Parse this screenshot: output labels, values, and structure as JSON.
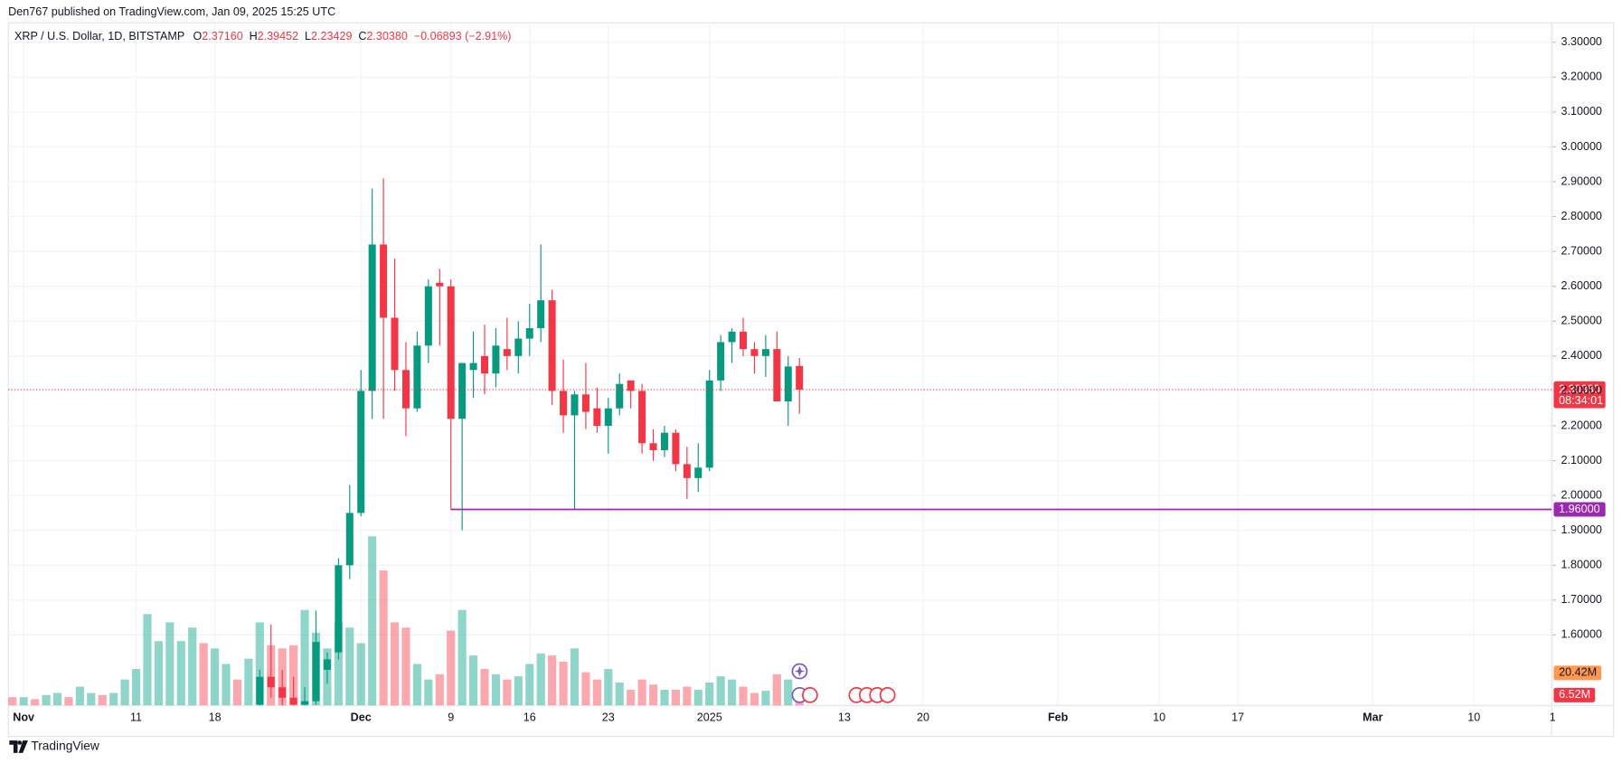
{
  "header": {
    "published": "Den767 published on TradingView.com, Jan 09, 2025 15:25 UTC"
  },
  "chart_data": {
    "type": "candlestick",
    "legend": {
      "symbol": "XRP / U.S. Dollar, 1D, BITSTAMP",
      "o": "O",
      "open": "2.37160",
      "h": "H",
      "high": "2.39452",
      "l": "L",
      "low": "2.23429",
      "c": "C",
      "close": "2.30380",
      "change": "−0.06893 (−2.91%)"
    },
    "x": [
      "2024-11-22",
      "2024-11-23",
      "2024-11-24",
      "2024-11-25",
      "2024-11-26",
      "2024-11-27",
      "2024-11-28",
      "2024-11-29",
      "2024-11-30",
      "2024-12-01",
      "2024-12-02",
      "2024-12-03",
      "2024-12-04",
      "2024-12-05",
      "2024-12-06",
      "2024-12-07",
      "2024-12-08",
      "2024-12-09",
      "2024-12-10",
      "2024-12-11",
      "2024-12-12",
      "2024-12-13",
      "2024-12-14",
      "2024-12-15",
      "2024-12-16",
      "2024-12-17",
      "2024-12-18",
      "2024-12-19",
      "2024-12-20",
      "2024-12-21",
      "2024-12-22",
      "2024-12-23",
      "2024-12-24",
      "2024-12-25",
      "2024-12-26",
      "2024-12-27",
      "2024-12-28",
      "2024-12-29",
      "2024-12-30",
      "2024-12-31",
      "2025-01-01",
      "2025-01-02",
      "2025-01-03",
      "2025-01-04",
      "2025-01-05",
      "2025-01-06",
      "2025-01-07",
      "2025-01-08",
      "2025-01-09"
    ],
    "open": [
      1.4,
      1.48,
      1.45,
      1.42,
      1.4,
      1.41,
      1.5,
      1.55,
      1.8,
      1.95,
      2.3,
      2.72,
      2.51,
      2.36,
      2.25,
      2.43,
      2.61,
      2.6,
      2.22,
      2.36,
      2.4,
      2.35,
      2.42,
      2.4,
      2.45,
      2.48,
      2.56,
      2.3,
      2.23,
      2.29,
      2.25,
      2.2,
      2.25,
      2.33,
      2.3,
      2.15,
      2.13,
      2.18,
      2.09,
      2.05,
      2.08,
      2.33,
      2.44,
      2.47,
      2.42,
      2.4,
      2.42,
      2.27,
      2.3716
    ],
    "high": [
      1.5,
      1.63,
      1.5,
      1.48,
      1.45,
      1.67,
      1.55,
      1.82,
      2.03,
      2.36,
      2.88,
      2.91,
      2.68,
      2.44,
      2.47,
      2.62,
      2.65,
      2.62,
      2.37,
      2.47,
      2.49,
      2.48,
      2.51,
      2.5,
      2.55,
      2.72,
      2.59,
      2.39,
      2.3,
      2.38,
      2.31,
      2.28,
      2.35,
      2.33,
      2.32,
      2.19,
      2.2,
      2.19,
      2.14,
      2.15,
      2.36,
      2.46,
      2.48,
      2.51,
      2.44,
      2.46,
      2.47,
      2.4,
      2.39452
    ],
    "low": [
      1.38,
      1.42,
      1.38,
      1.38,
      1.36,
      1.4,
      1.46,
      1.53,
      1.76,
      1.94,
      2.22,
      2.22,
      2.3,
      2.17,
      2.24,
      2.38,
      2.43,
      1.96,
      1.9,
      2.28,
      2.29,
      2.31,
      2.36,
      2.35,
      2.4,
      2.44,
      2.26,
      2.18,
      1.96,
      2.19,
      2.18,
      2.12,
      2.23,
      2.25,
      2.12,
      2.1,
      2.11,
      2.07,
      1.99,
      2.01,
      2.07,
      2.3,
      2.38,
      2.4,
      2.35,
      2.34,
      2.27,
      2.2,
      2.23429
    ],
    "close": [
      1.48,
      1.45,
      1.42,
      1.4,
      1.41,
      1.58,
      1.53,
      1.8,
      1.95,
      2.3,
      2.72,
      2.51,
      2.36,
      2.25,
      2.43,
      2.6,
      2.6,
      2.22,
      2.38,
      2.38,
      2.35,
      2.43,
      2.4,
      2.45,
      2.48,
      2.56,
      2.3,
      2.23,
      2.29,
      2.24,
      2.2,
      2.25,
      2.32,
      2.3,
      2.15,
      2.13,
      2.18,
      2.09,
      2.05,
      2.08,
      2.33,
      2.44,
      2.47,
      2.42,
      2.4,
      2.42,
      2.27,
      2.37,
      2.3038
    ],
    "up_color": "#089981",
    "down_color": "#f23645",
    "volume": {
      "x": [
        "2024-10-31",
        "2024-11-01",
        "2024-11-02",
        "2024-11-03",
        "2024-11-04",
        "2024-11-05",
        "2024-11-06",
        "2024-11-07",
        "2024-11-08",
        "2024-11-09",
        "2024-11-10",
        "2024-11-11",
        "2024-11-12",
        "2024-11-13",
        "2024-11-14",
        "2024-11-15",
        "2024-11-16",
        "2024-11-17",
        "2024-11-18",
        "2024-11-19",
        "2024-11-20",
        "2024-11-21",
        "2024-11-22",
        "2024-11-23",
        "2024-11-24",
        "2024-11-25",
        "2024-11-26",
        "2024-11-27",
        "2024-11-28",
        "2024-11-29",
        "2024-11-30",
        "2024-12-01",
        "2024-12-02",
        "2024-12-03",
        "2024-12-04",
        "2024-12-05",
        "2024-12-06",
        "2024-12-07",
        "2024-12-08",
        "2024-12-09",
        "2024-12-10",
        "2024-12-11",
        "2024-12-12",
        "2024-12-13",
        "2024-12-14",
        "2024-12-15",
        "2024-12-16",
        "2024-12-17",
        "2024-12-18",
        "2024-12-19",
        "2024-12-20",
        "2024-12-21",
        "2024-12-22",
        "2024-12-23",
        "2024-12-24",
        "2024-12-25",
        "2024-12-26",
        "2024-12-27",
        "2024-12-28",
        "2024-12-29",
        "2024-12-30",
        "2024-12-31",
        "2025-01-01",
        "2025-01-02",
        "2025-01-03",
        "2025-01-04",
        "2025-01-05",
        "2025-01-06",
        "2025-01-07",
        "2025-01-08",
        "2025-01-09"
      ],
      "values": [
        5.2,
        5.2,
        3.9,
        6.5,
        7.8,
        5.2,
        11.8,
        7.8,
        6.5,
        7.8,
        16.3,
        22.9,
        57.5,
        40.5,
        52.3,
        40.5,
        49,
        39.2,
        35.9,
        26.1,
        16.3,
        29.4,
        52.3,
        37.9,
        35.9,
        37.9,
        60.1,
        45.8,
        35.9,
        52.3,
        49,
        39.2,
        106.5,
        85,
        52.3,
        49,
        26.1,
        16.3,
        19.6,
        47.1,
        60.1,
        31.4,
        22.9,
        19.6,
        16.3,
        18.3,
        26.1,
        32.7,
        31.4,
        27.5,
        35.9,
        20.9,
        16.3,
        22.9,
        14.4,
        9.8,
        16.3,
        13.1,
        9.8,
        9.8,
        11.8,
        9.8,
        14.4,
        18.3,
        16.3,
        11.8,
        7.8,
        9.2,
        19.6,
        16.3,
        6.52
      ],
      "up": [
        false,
        true,
        false,
        true,
        true,
        false,
        true,
        true,
        false,
        true,
        true,
        true,
        true,
        true,
        true,
        true,
        true,
        false,
        true,
        true,
        false,
        true,
        true,
        false,
        false,
        false,
        true,
        true,
        true,
        true,
        true,
        true,
        true,
        false,
        false,
        false,
        true,
        true,
        false,
        false,
        true,
        true,
        false,
        true,
        false,
        true,
        true,
        true,
        false,
        false,
        true,
        false,
        false,
        true,
        true,
        false,
        false,
        false,
        true,
        false,
        false,
        true,
        true,
        true,
        true,
        false,
        false,
        true,
        false,
        true,
        false
      ],
      "up_color": "#22ab94",
      "down_color": "#f7525f",
      "opacity": 0.5,
      "vlim": [
        0,
        430
      ],
      "ma": {
        "value": 20.42,
        "label": "20.42M",
        "color": "#ff9850"
      },
      "last_label": "6.52M"
    },
    "last_price": {
      "label": "2.30380",
      "countdown": "08:34:01",
      "color": "#f23645"
    },
    "hline": {
      "value": 1.96,
      "start": "2024-12-09",
      "label": "1.96000",
      "color": "#9c27b0"
    },
    "xlim": [
      "2024-10-31",
      "2025-03-17"
    ],
    "xticks": [
      {
        "value": "2024-11-01",
        "label": "Nov"
      },
      {
        "value": "2024-11-11",
        "label": "11"
      },
      {
        "value": "2024-11-18",
        "label": "18"
      },
      {
        "value": "2024-12-01",
        "label": "Dec"
      },
      {
        "value": "2024-12-09",
        "label": "9"
      },
      {
        "value": "2024-12-16",
        "label": "16"
      },
      {
        "value": "2024-12-23",
        "label": "23"
      },
      {
        "value": "2025-01-01",
        "label": "2025"
      },
      {
        "value": "2025-01-13",
        "label": "13"
      },
      {
        "value": "2025-01-20",
        "label": "20"
      },
      {
        "value": "2025-02-01",
        "label": "Feb"
      },
      {
        "value": "2025-02-10",
        "label": "10"
      },
      {
        "value": "2025-02-17",
        "label": "17"
      },
      {
        "value": "2025-03-01",
        "label": "Mar"
      },
      {
        "value": "2025-03-10",
        "label": "10"
      },
      {
        "value": "2025-03-17",
        "label": "1"
      }
    ],
    "ylim": [
      1.398,
      3.356
    ],
    "yticks": [
      {
        "value": 1.6,
        "label": "1.60000"
      },
      {
        "value": 1.7,
        "label": "1.70000"
      },
      {
        "value": 1.8,
        "label": "1.80000"
      },
      {
        "value": 1.9,
        "label": "1.90000"
      },
      {
        "value": 2.0,
        "label": "2.00000"
      },
      {
        "value": 2.1,
        "label": "2.10000"
      },
      {
        "value": 2.2,
        "label": "2.20000"
      },
      {
        "value": 2.3,
        "label": "2.30000"
      },
      {
        "value": 2.4,
        "label": "2.40000"
      },
      {
        "value": 2.5,
        "label": "2.50000"
      },
      {
        "value": 2.6,
        "label": "2.60000"
      },
      {
        "value": 2.7,
        "label": "2.70000"
      },
      {
        "value": 2.8,
        "label": "2.80000"
      },
      {
        "value": 2.9,
        "label": "2.90000"
      },
      {
        "value": 3.0,
        "label": "3.00000"
      },
      {
        "value": 3.1,
        "label": "3.10000"
      },
      {
        "value": 3.2,
        "label": "3.20000"
      },
      {
        "value": 3.3,
        "label": "3.30000"
      }
    ],
    "grid": true
  },
  "footer": {
    "brand": "TradingView"
  }
}
